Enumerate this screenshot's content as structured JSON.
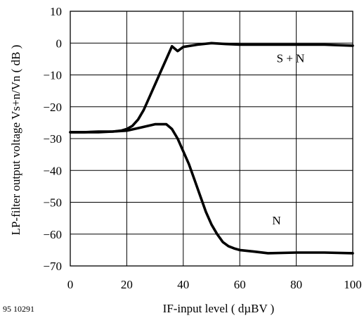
{
  "figure_code": "95 10291",
  "chart_data": {
    "type": "line",
    "xlabel": "IF-input level ( dµBV )",
    "ylabel": "LP-filter output voltage Vs+n/Vn ( dB )",
    "xlim": [
      0,
      100
    ],
    "ylim": [
      -70,
      10
    ],
    "xticks": [
      0,
      20,
      40,
      60,
      80,
      100
    ],
    "yticks": [
      10,
      0,
      -10,
      -20,
      -30,
      -40,
      -50,
      -60,
      -70
    ],
    "grid": true,
    "series": [
      {
        "name": "S + N",
        "x": [
          0,
          10,
          15,
          18,
          20,
          22,
          24,
          26,
          28,
          30,
          32,
          34,
          36,
          38,
          40,
          45,
          50,
          55,
          60,
          70,
          80,
          90,
          100
        ],
        "y": [
          -28,
          -28,
          -27.8,
          -27.5,
          -27,
          -26,
          -24,
          -21,
          -17,
          -13,
          -9,
          -5,
          -1,
          -2.5,
          -1.2,
          -0.5,
          0,
          -0.3,
          -0.5,
          -0.5,
          -0.5,
          -0.5,
          -0.8
        ]
      },
      {
        "name": "N",
        "x": [
          0,
          5,
          10,
          15,
          20,
          25,
          30,
          34,
          36,
          38,
          40,
          42,
          44,
          46,
          48,
          50,
          52,
          54,
          56,
          58,
          60,
          65,
          70,
          80,
          90,
          100
        ],
        "y": [
          -28,
          -28,
          -27.8,
          -27.8,
          -27.5,
          -26.5,
          -25.5,
          -25.5,
          -27,
          -30,
          -34,
          -38,
          -43,
          -48,
          -53,
          -57,
          -60,
          -62.5,
          -63.8,
          -64.5,
          -65,
          -65.5,
          -66,
          -65.8,
          -65.8,
          -66
        ]
      }
    ],
    "annotations": [
      {
        "text": "S + N",
        "x": 78,
        "y": -6
      },
      {
        "text": "N",
        "x": 73,
        "y": -57
      }
    ]
  }
}
